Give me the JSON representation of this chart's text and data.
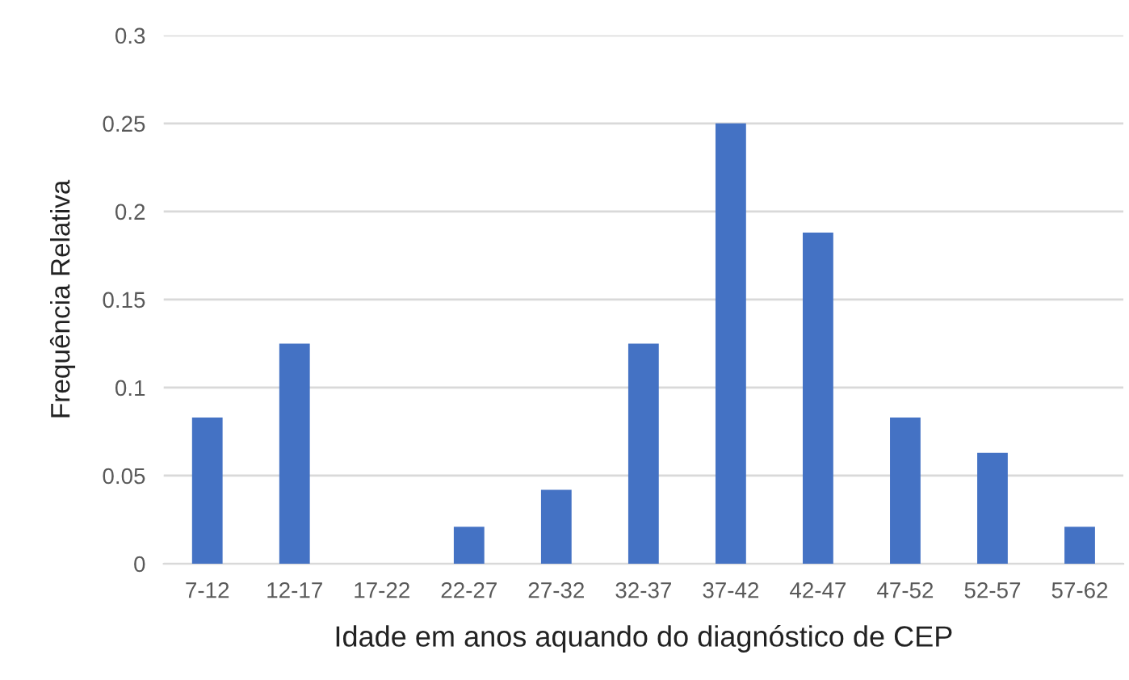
{
  "chart_data": {
    "type": "bar",
    "xlabel": "Idade em anos aquando do diagnóstico de CEP",
    "ylabel": "Frequência Relativa",
    "categories": [
      "7-12",
      "12-17",
      "17-22",
      "22-27",
      "27-32",
      "32-37",
      "37-42",
      "42-47",
      "47-52",
      "52-57",
      "57-62"
    ],
    "values": [
      0.083,
      0.125,
      0,
      0.021,
      0.042,
      0.125,
      0.25,
      0.188,
      0.083,
      0.063,
      0.021
    ],
    "color": "#4472c4",
    "ylim": [
      0,
      0.3
    ],
    "yticks": [
      0,
      0.05,
      0.1,
      0.15,
      0.2,
      0.25,
      0.3
    ],
    "grid": "y",
    "legend": false
  }
}
